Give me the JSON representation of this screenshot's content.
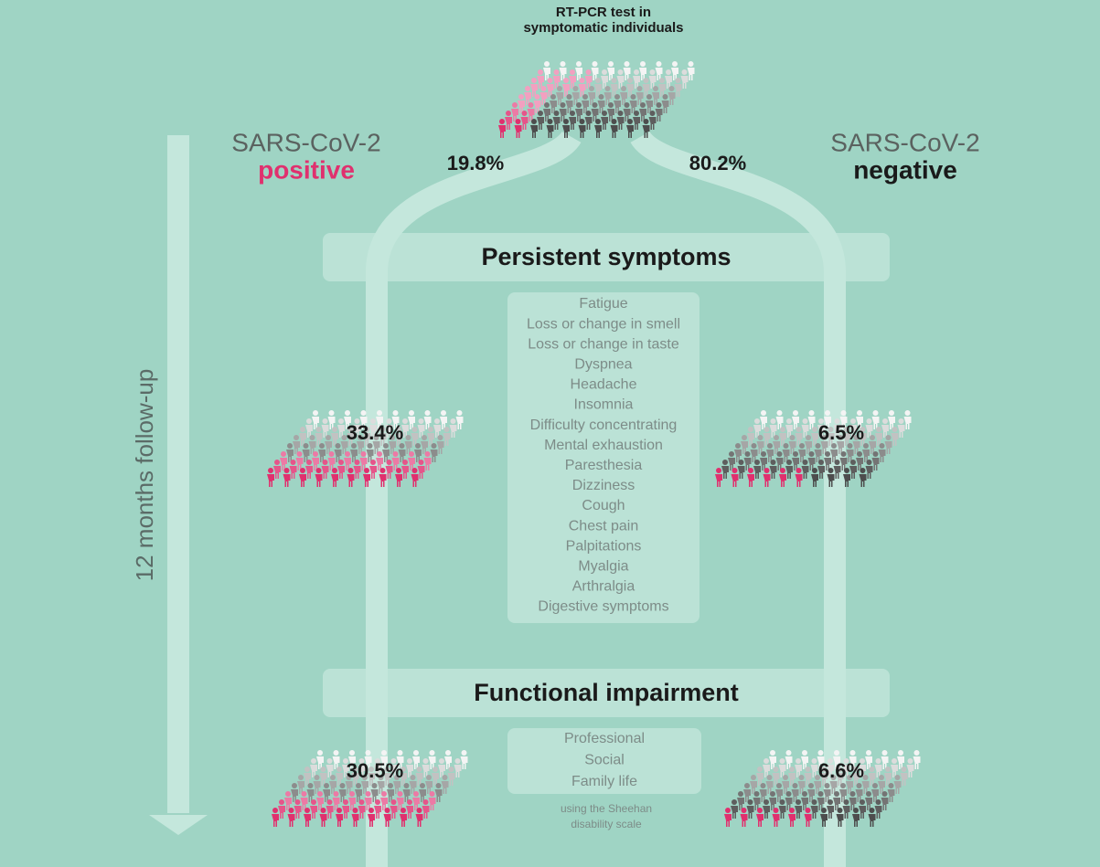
{
  "header": {
    "lines": [
      "RT-PCR test in",
      "symptomatic individuals"
    ]
  },
  "groups": {
    "positive": {
      "label": "SARS-CoV-2",
      "status": "positive",
      "share": "19.8%",
      "persistent": "33.4%",
      "impairment": "30.5%"
    },
    "negative": {
      "label": "SARS-CoV-2",
      "status": "negative",
      "share": "80.2%",
      "persistent": "6.5%",
      "impairment": "6.6%"
    }
  },
  "timeline": "12 months follow-up",
  "persistent_symptoms": {
    "title": "Persistent symptoms",
    "items": [
      "Fatigue",
      "Loss or change in smell",
      "Loss or change in taste",
      "Dyspnea",
      "Headache",
      "Insomnia",
      "Difficulty concentrating",
      "Mental exhaustion",
      "Paresthesia",
      "Dizziness",
      "Cough",
      "Chest pain",
      "Palpitations",
      "Myalgia",
      "Arthralgia",
      "Digestive symptoms"
    ]
  },
  "functional_impairment": {
    "title": "Functional impairment",
    "items": [
      "Professional",
      "Social",
      "Family life"
    ],
    "note": [
      "using the Sheehan",
      "disability scale"
    ]
  }
}
